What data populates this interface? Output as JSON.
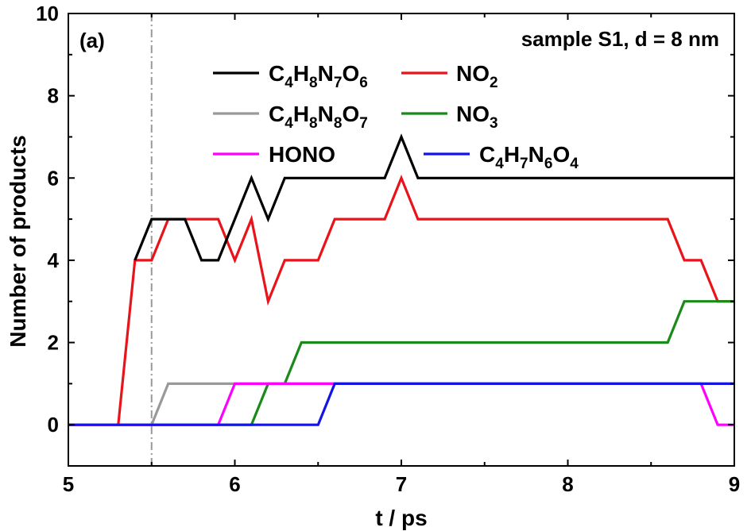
{
  "chart_data": {
    "type": "line",
    "panel_label": "(a)",
    "annotation": "sample S1, d = 8 nm",
    "xlabel": "t / ps",
    "ylabel": "Number of products",
    "xlim": [
      5,
      9
    ],
    "ylim": [
      -1,
      10
    ],
    "xticks": [
      5,
      6,
      7,
      8,
      9
    ],
    "yticks": [
      0,
      2,
      4,
      6,
      8,
      10
    ],
    "x_tick_labels": [
      "5",
      "6",
      "7",
      "8",
      "9"
    ],
    "y_tick_labels": [
      "0",
      "2",
      "4",
      "6",
      "8",
      "10"
    ],
    "reference_line_x": 5.5,
    "reference_line_color": "#999999",
    "legend_placement": "top-center",
    "series": [
      {
        "name": "C4H8N7O6",
        "label_parts": [
          [
            "C",
            ""
          ],
          [
            "4",
            "sub"
          ],
          [
            "H",
            ""
          ],
          [
            "8",
            "sub"
          ],
          [
            "N",
            ""
          ],
          [
            "7",
            "sub"
          ],
          [
            "O",
            ""
          ],
          [
            "6",
            "sub"
          ]
        ],
        "color": "#000000",
        "points": [
          [
            5.4,
            4
          ],
          [
            5.5,
            5
          ],
          [
            5.7,
            5
          ],
          [
            5.8,
            4
          ],
          [
            5.9,
            4
          ],
          [
            6.1,
            6
          ],
          [
            6.2,
            5
          ],
          [
            6.3,
            6
          ],
          [
            6.9,
            6
          ],
          [
            7.0,
            7
          ],
          [
            7.1,
            6
          ],
          [
            9.0,
            6
          ]
        ]
      },
      {
        "name": "NO2",
        "label_parts": [
          [
            "NO",
            ""
          ],
          [
            "2",
            "sub"
          ]
        ],
        "color": "#e8141a",
        "points": [
          [
            5.0,
            0
          ],
          [
            5.3,
            0
          ],
          [
            5.4,
            4
          ],
          [
            5.5,
            4
          ],
          [
            5.6,
            5
          ],
          [
            5.9,
            5
          ],
          [
            6.0,
            4
          ],
          [
            6.1,
            5
          ],
          [
            6.2,
            3
          ],
          [
            6.3,
            4
          ],
          [
            6.5,
            4
          ],
          [
            6.6,
            5
          ],
          [
            6.9,
            5
          ],
          [
            7.0,
            6
          ],
          [
            7.1,
            5
          ],
          [
            8.6,
            5
          ],
          [
            8.7,
            4
          ],
          [
            8.8,
            4
          ],
          [
            8.9,
            3
          ],
          [
            9.0,
            3
          ]
        ]
      },
      {
        "name": "C4H8N8O7",
        "label_parts": [
          [
            "C",
            ""
          ],
          [
            "4",
            "sub"
          ],
          [
            "H",
            ""
          ],
          [
            "8",
            "sub"
          ],
          [
            "N",
            ""
          ],
          [
            "8",
            "sub"
          ],
          [
            "O",
            ""
          ],
          [
            "7",
            "sub"
          ]
        ],
        "color": "#999999",
        "points": [
          [
            5.0,
            0
          ],
          [
            5.5,
            0
          ],
          [
            5.6,
            1
          ],
          [
            9.0,
            1
          ]
        ]
      },
      {
        "name": "NO3",
        "label_parts": [
          [
            "NO",
            ""
          ],
          [
            "3",
            "sub"
          ]
        ],
        "color": "#1a8a1a",
        "points": [
          [
            5.0,
            0
          ],
          [
            6.1,
            0
          ],
          [
            6.2,
            1
          ],
          [
            6.3,
            1
          ],
          [
            6.4,
            2
          ],
          [
            8.6,
            2
          ],
          [
            8.7,
            3
          ],
          [
            9.0,
            3
          ]
        ]
      },
      {
        "name": "HONO",
        "label_parts": [
          [
            "HONO",
            ""
          ]
        ],
        "color": "#ff00ff",
        "points": [
          [
            5.0,
            0
          ],
          [
            5.9,
            0
          ],
          [
            6.0,
            1
          ],
          [
            8.8,
            1
          ],
          [
            8.9,
            0
          ],
          [
            9.0,
            0
          ]
        ]
      },
      {
        "name": "C4H7N6O4",
        "label_parts": [
          [
            "C",
            ""
          ],
          [
            "4",
            "sub"
          ],
          [
            "H",
            ""
          ],
          [
            "7",
            "sub"
          ],
          [
            "N",
            ""
          ],
          [
            "6",
            "sub"
          ],
          [
            "O",
            ""
          ],
          [
            "4",
            "sub"
          ]
        ],
        "color": "#1414e6",
        "points": [
          [
            5.0,
            0
          ],
          [
            6.5,
            0
          ],
          [
            6.6,
            1
          ],
          [
            9.0,
            1
          ]
        ]
      }
    ]
  }
}
